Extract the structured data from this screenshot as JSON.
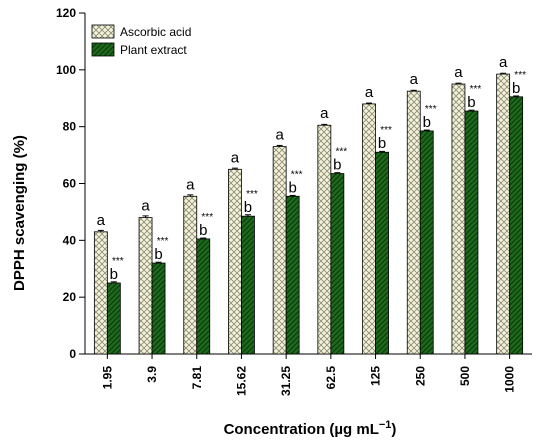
{
  "chart_data": {
    "type": "bar",
    "xlabel": "Concentration (µg mL",
    "xlabel_superscript": "−1",
    "xlabel_close": ")",
    "ylabel": "DPPH scavenging (%)",
    "ylim": [
      0,
      120
    ],
    "yticks": [
      0,
      20,
      40,
      60,
      80,
      100,
      120
    ],
    "categories": [
      "1.95",
      "3.9",
      "7.81",
      "15.62",
      "31.25",
      "62.5",
      "125",
      "250",
      "500",
      "1000"
    ],
    "series": [
      {
        "name": "Ascorbic acid",
        "values": [
          43,
          48,
          55.5,
          65,
          73,
          80.5,
          88,
          92.5,
          95,
          98.5
        ],
        "errors": [
          0.5,
          0.6,
          0.5,
          0.4,
          0.4,
          0.3,
          0.3,
          0.3,
          0.3,
          0.3
        ],
        "letter": "a",
        "fill": "#f4f2dc",
        "pattern": "crosshatch"
      },
      {
        "name": "Plant extract",
        "values": [
          25,
          32,
          40.5,
          48.5,
          55.5,
          63.5,
          71,
          78.5,
          85.5,
          90.5
        ],
        "errors": [
          0.4,
          0.3,
          0.3,
          0.5,
          0.3,
          0.3,
          0.3,
          0.3,
          0.3,
          0.3
        ],
        "letter": "b",
        "significance": "***",
        "fill": "#1e6b1e",
        "pattern": "diagonal"
      }
    ],
    "legend_position": "top-left",
    "grid": false
  }
}
